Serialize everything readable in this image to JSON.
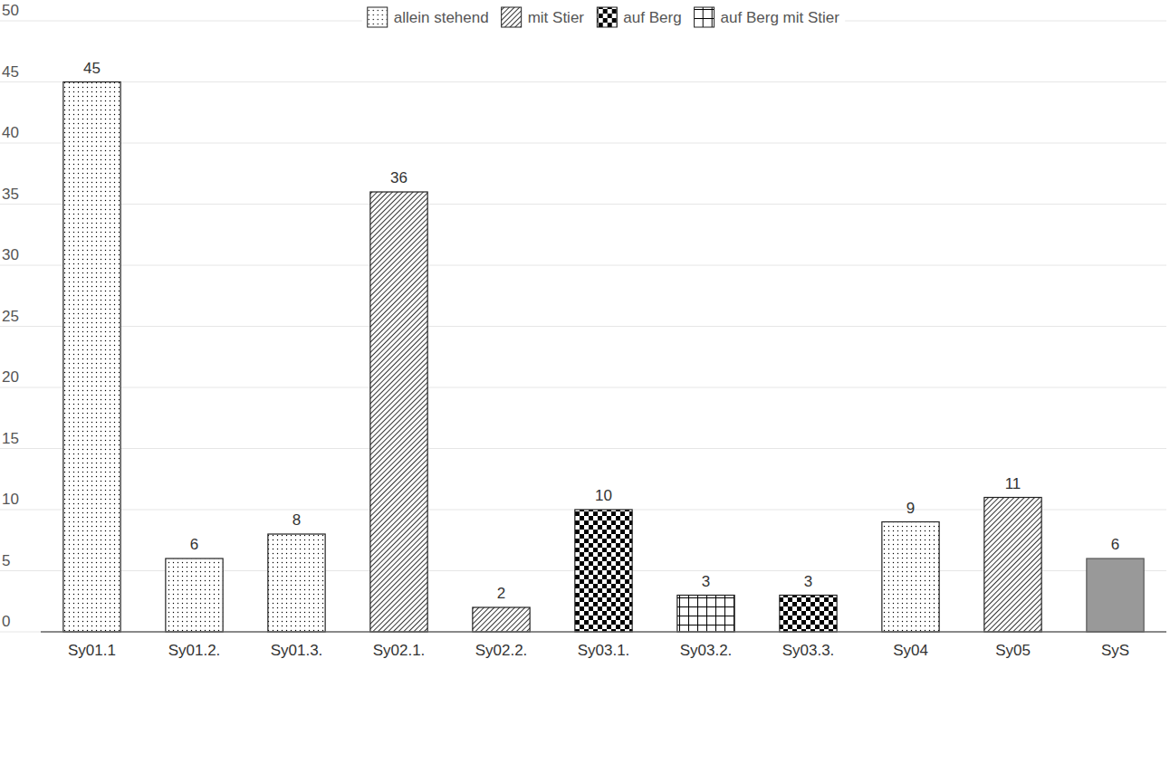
{
  "chart_data": {
    "type": "bar",
    "categories": [
      "Sy01.1",
      "Sy01.2.",
      "Sy01.3.",
      "Sy02.1.",
      "Sy02.2.",
      "Sy03.1.",
      "Sy03.2.",
      "Sy03.3.",
      "Sy04",
      "Sy05",
      "SyS"
    ],
    "series": [
      {
        "name": "allein stehend",
        "color": "#000000",
        "values": [
          45,
          6,
          8,
          null,
          null,
          null,
          null,
          null,
          9,
          null,
          null
        ]
      },
      {
        "name": "mit Stier",
        "color": "#000000",
        "values": [
          null,
          null,
          null,
          36,
          2,
          null,
          null,
          null,
          null,
          11,
          null
        ]
      },
      {
        "name": "auf Berg",
        "color": "#000000",
        "values": [
          null,
          null,
          null,
          null,
          null,
          10,
          null,
          3,
          null,
          null,
          null
        ]
      },
      {
        "name": "auf Berg mit Stier",
        "color": "#000000",
        "values": [
          null,
          null,
          null,
          null,
          null,
          null,
          3,
          null,
          null,
          null,
          null
        ]
      },
      {
        "color": "#999999",
        "values": [
          null,
          null,
          null,
          null,
          null,
          null,
          null,
          null,
          null,
          null,
          6
        ]
      }
    ],
    "stacked": true,
    "ylim": [
      0,
      50
    ],
    "yticks": [
      0,
      5,
      10,
      15,
      20,
      25,
      30,
      35,
      40,
      45,
      50
    ],
    "grid": true,
    "legend": "top",
    "data_labels": true
  }
}
